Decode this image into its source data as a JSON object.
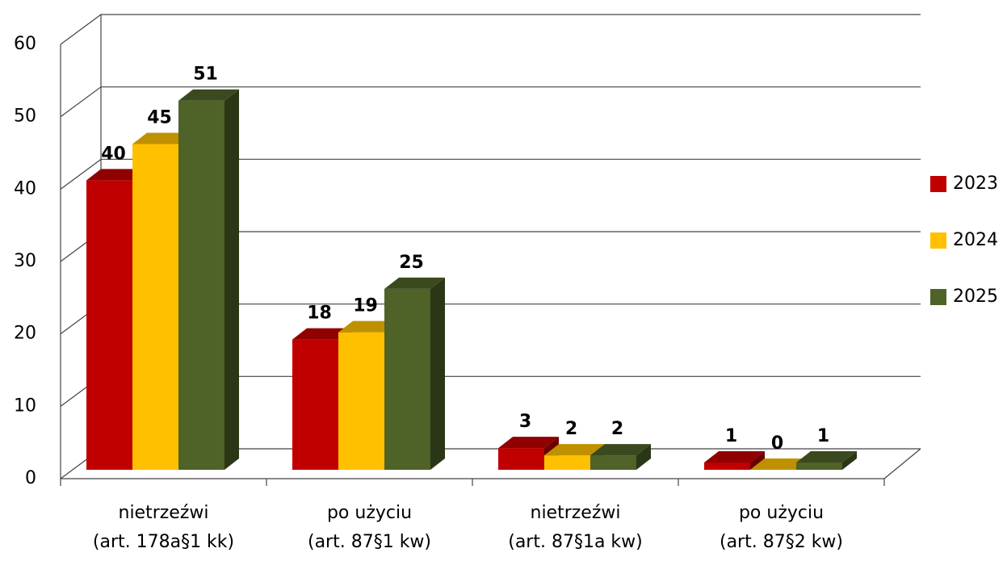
{
  "chart_data": {
    "type": "bar3d",
    "categories": [
      "nietrzeźwi\n(art. 178a§1 kk)",
      "po użyciu\n(art. 87§1 kw)",
      "nietrzeźwi\n(art. 87§1a kw)",
      "po użyciu\n(art. 87§2 kw)"
    ],
    "series": [
      {
        "name": "2023",
        "color": "#c00000",
        "values": [
          40,
          18,
          3,
          1
        ]
      },
      {
        "name": "2024",
        "color": "#ffc000",
        "values": [
          45,
          19,
          2,
          0
        ]
      },
      {
        "name": "2025",
        "color": "#4f6228",
        "values": [
          51,
          25,
          2,
          1
        ]
      }
    ],
    "ylim": [
      0,
      60
    ],
    "yticks": [
      0,
      10,
      20,
      30,
      40,
      50,
      60
    ],
    "grid": true,
    "legend": "right"
  }
}
